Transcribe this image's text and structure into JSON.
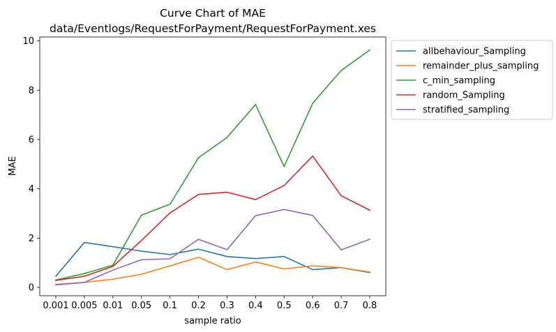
{
  "chart_data": {
    "type": "line",
    "title": "Curve Chart of MAE",
    "subtitle": "data/Eventlogs/RequestForPayment/RequestForPayment.xes",
    "xlabel": "sample ratio",
    "ylabel": "MAE",
    "categories": [
      "0.001",
      "0.005",
      "0.01",
      "0.05",
      "0.1",
      "0.2",
      "0.3",
      "0.4",
      "0.5",
      "0.6",
      "0.7",
      "0.8"
    ],
    "ylim": [
      -0.34,
      10.16
    ],
    "yticks": [
      0,
      2,
      4,
      6,
      8,
      10
    ],
    "grid": false,
    "legend_position": "outside-top-right",
    "series": [
      {
        "name": "allbehaviour_Sampling",
        "color": "#1f77b4",
        "values": [
          0.45,
          1.82,
          1.65,
          1.47,
          1.33,
          1.55,
          1.25,
          1.17,
          1.25,
          0.72,
          0.8,
          0.6
        ]
      },
      {
        "name": "remainder_plus_sampling",
        "color": "#ff7f0e",
        "values": [
          0.12,
          0.2,
          0.33,
          0.53,
          0.87,
          1.22,
          0.72,
          1.03,
          0.75,
          0.87,
          0.8,
          0.62
        ]
      },
      {
        "name": "c_min_sampling",
        "color": "#2ca02c",
        "values": [
          0.3,
          0.56,
          0.9,
          2.93,
          3.37,
          5.26,
          6.08,
          7.42,
          4.9,
          7.47,
          8.8,
          9.63
        ]
      },
      {
        "name": "random_Sampling",
        "color": "#d62728",
        "values": [
          0.28,
          0.45,
          0.85,
          1.9,
          3.02,
          3.77,
          3.86,
          3.56,
          4.13,
          5.33,
          3.72,
          3.13
        ]
      },
      {
        "name": "stratified_sampling",
        "color": "#9467bd",
        "values": [
          0.1,
          0.2,
          0.7,
          1.12,
          1.16,
          1.95,
          1.53,
          2.91,
          3.16,
          2.92,
          1.52,
          1.95
        ]
      }
    ]
  }
}
